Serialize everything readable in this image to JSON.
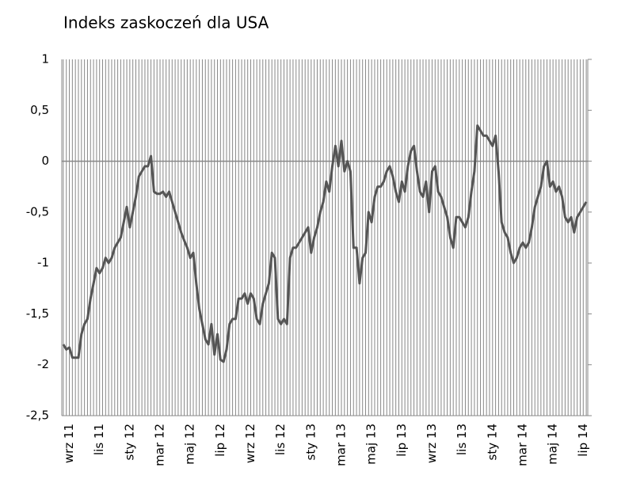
{
  "chart_data": {
    "type": "line",
    "title": "Indeks zaskoczeń dla USA",
    "categories": [
      null,
      null,
      "wrz 11",
      null,
      null,
      null,
      null,
      null,
      null,
      null,
      null,
      null,
      "lis 11",
      null,
      null,
      null,
      null,
      null,
      null,
      null,
      null,
      null,
      "sty 12",
      null,
      null,
      null,
      null,
      null,
      null,
      null,
      null,
      null,
      "mar 12",
      null,
      null,
      null,
      null,
      null,
      null,
      null,
      null,
      null,
      "maj 12",
      null,
      null,
      null,
      null,
      null,
      null,
      null,
      null,
      null,
      "lip 12",
      null,
      null,
      null,
      null,
      null,
      null,
      null,
      null,
      null,
      "wrz 12",
      null,
      null,
      null,
      null,
      null,
      null,
      null,
      null,
      null,
      "lis 12",
      null,
      null,
      null,
      null,
      null,
      null,
      null,
      null,
      null,
      "sty 13",
      null,
      null,
      null,
      null,
      null,
      null,
      null,
      null,
      null,
      "mar 13",
      null,
      null,
      null,
      null,
      null,
      null,
      null,
      null,
      null,
      "maj 13",
      null,
      null,
      null,
      null,
      null,
      null,
      null,
      null,
      null,
      "lip 13",
      null,
      null,
      null,
      null,
      null,
      null,
      null,
      null,
      null,
      "wrz 13",
      null,
      null,
      null,
      null,
      null,
      null,
      null,
      null,
      null,
      "lis 13",
      null,
      null,
      null,
      null,
      null,
      null,
      null,
      null,
      null,
      "sty 14",
      null,
      null,
      null,
      null,
      null,
      null,
      null,
      null,
      null,
      "mar 14",
      null,
      null,
      null,
      null,
      null,
      null,
      null,
      null,
      null,
      "maj 14",
      null,
      null,
      null,
      null,
      null,
      null,
      null,
      null,
      null,
      "lip 14",
      null
    ],
    "values": [
      -1.8,
      -1.85,
      -1.83,
      -1.93,
      -1.93,
      -1.93,
      -1.7,
      -1.6,
      -1.55,
      -1.35,
      -1.2,
      -1.05,
      -1.1,
      -1.05,
      -0.95,
      -1.0,
      -0.95,
      -0.85,
      -0.8,
      -0.75,
      -0.6,
      -0.45,
      -0.65,
      -0.5,
      -0.35,
      -0.15,
      -0.1,
      -0.05,
      -0.05,
      0.05,
      -0.3,
      -0.32,
      -0.32,
      -0.3,
      -0.35,
      -0.3,
      -0.4,
      -0.5,
      -0.6,
      -0.7,
      -0.78,
      -0.85,
      -0.95,
      -0.9,
      -1.2,
      -1.45,
      -1.6,
      -1.75,
      -1.8,
      -1.6,
      -1.9,
      -1.7,
      -1.95,
      -1.97,
      -1.85,
      -1.6,
      -1.55,
      -1.55,
      -1.35,
      -1.35,
      -1.3,
      -1.4,
      -1.3,
      -1.35,
      -1.55,
      -1.6,
      -1.4,
      -1.3,
      -1.2,
      -0.9,
      -0.95,
      -1.55,
      -1.6,
      -1.55,
      -1.6,
      -0.95,
      -0.85,
      -0.85,
      -0.8,
      -0.75,
      -0.7,
      -0.65,
      -0.9,
      -0.75,
      -0.65,
      -0.5,
      -0.4,
      -0.2,
      -0.3,
      -0.05,
      0.15,
      -0.05,
      0.2,
      -0.1,
      0.0,
      -0.1,
      -0.85,
      -0.85,
      -1.2,
      -0.95,
      -0.9,
      -0.5,
      -0.6,
      -0.35,
      -0.25,
      -0.25,
      -0.2,
      -0.1,
      -0.05,
      -0.15,
      -0.3,
      -0.4,
      -0.2,
      -0.3,
      -0.05,
      0.1,
      0.15,
      -0.1,
      -0.3,
      -0.35,
      -0.2,
      -0.5,
      -0.1,
      -0.05,
      -0.3,
      -0.35,
      -0.45,
      -0.55,
      -0.75,
      -0.85,
      -0.55,
      -0.55,
      -0.6,
      -0.65,
      -0.55,
      -0.3,
      -0.1,
      0.35,
      0.3,
      0.25,
      0.25,
      0.2,
      0.15,
      0.25,
      -0.1,
      -0.6,
      -0.7,
      -0.75,
      -0.9,
      -1.0,
      -0.95,
      -0.85,
      -0.8,
      -0.85,
      -0.8,
      -0.65,
      -0.45,
      -0.35,
      -0.25,
      -0.05,
      0.0,
      -0.25,
      -0.2,
      -0.3,
      -0.25,
      -0.35,
      -0.55,
      -0.6,
      -0.55,
      -0.7,
      -0.55,
      -0.5,
      -0.45,
      -0.4
    ],
    "color": "#555555",
    "ylim": [
      -2.5,
      1
    ],
    "yticks": [
      {
        "value": -2.5,
        "label": "-2,5"
      },
      -2,
      {
        "value": -1.5,
        "label": "-1,5"
      },
      -1,
      {
        "value": -0.5,
        "label": "-0,5"
      },
      0,
      {
        "value": 0.5,
        "label": "0,5"
      },
      1
    ],
    "grid": true
  }
}
